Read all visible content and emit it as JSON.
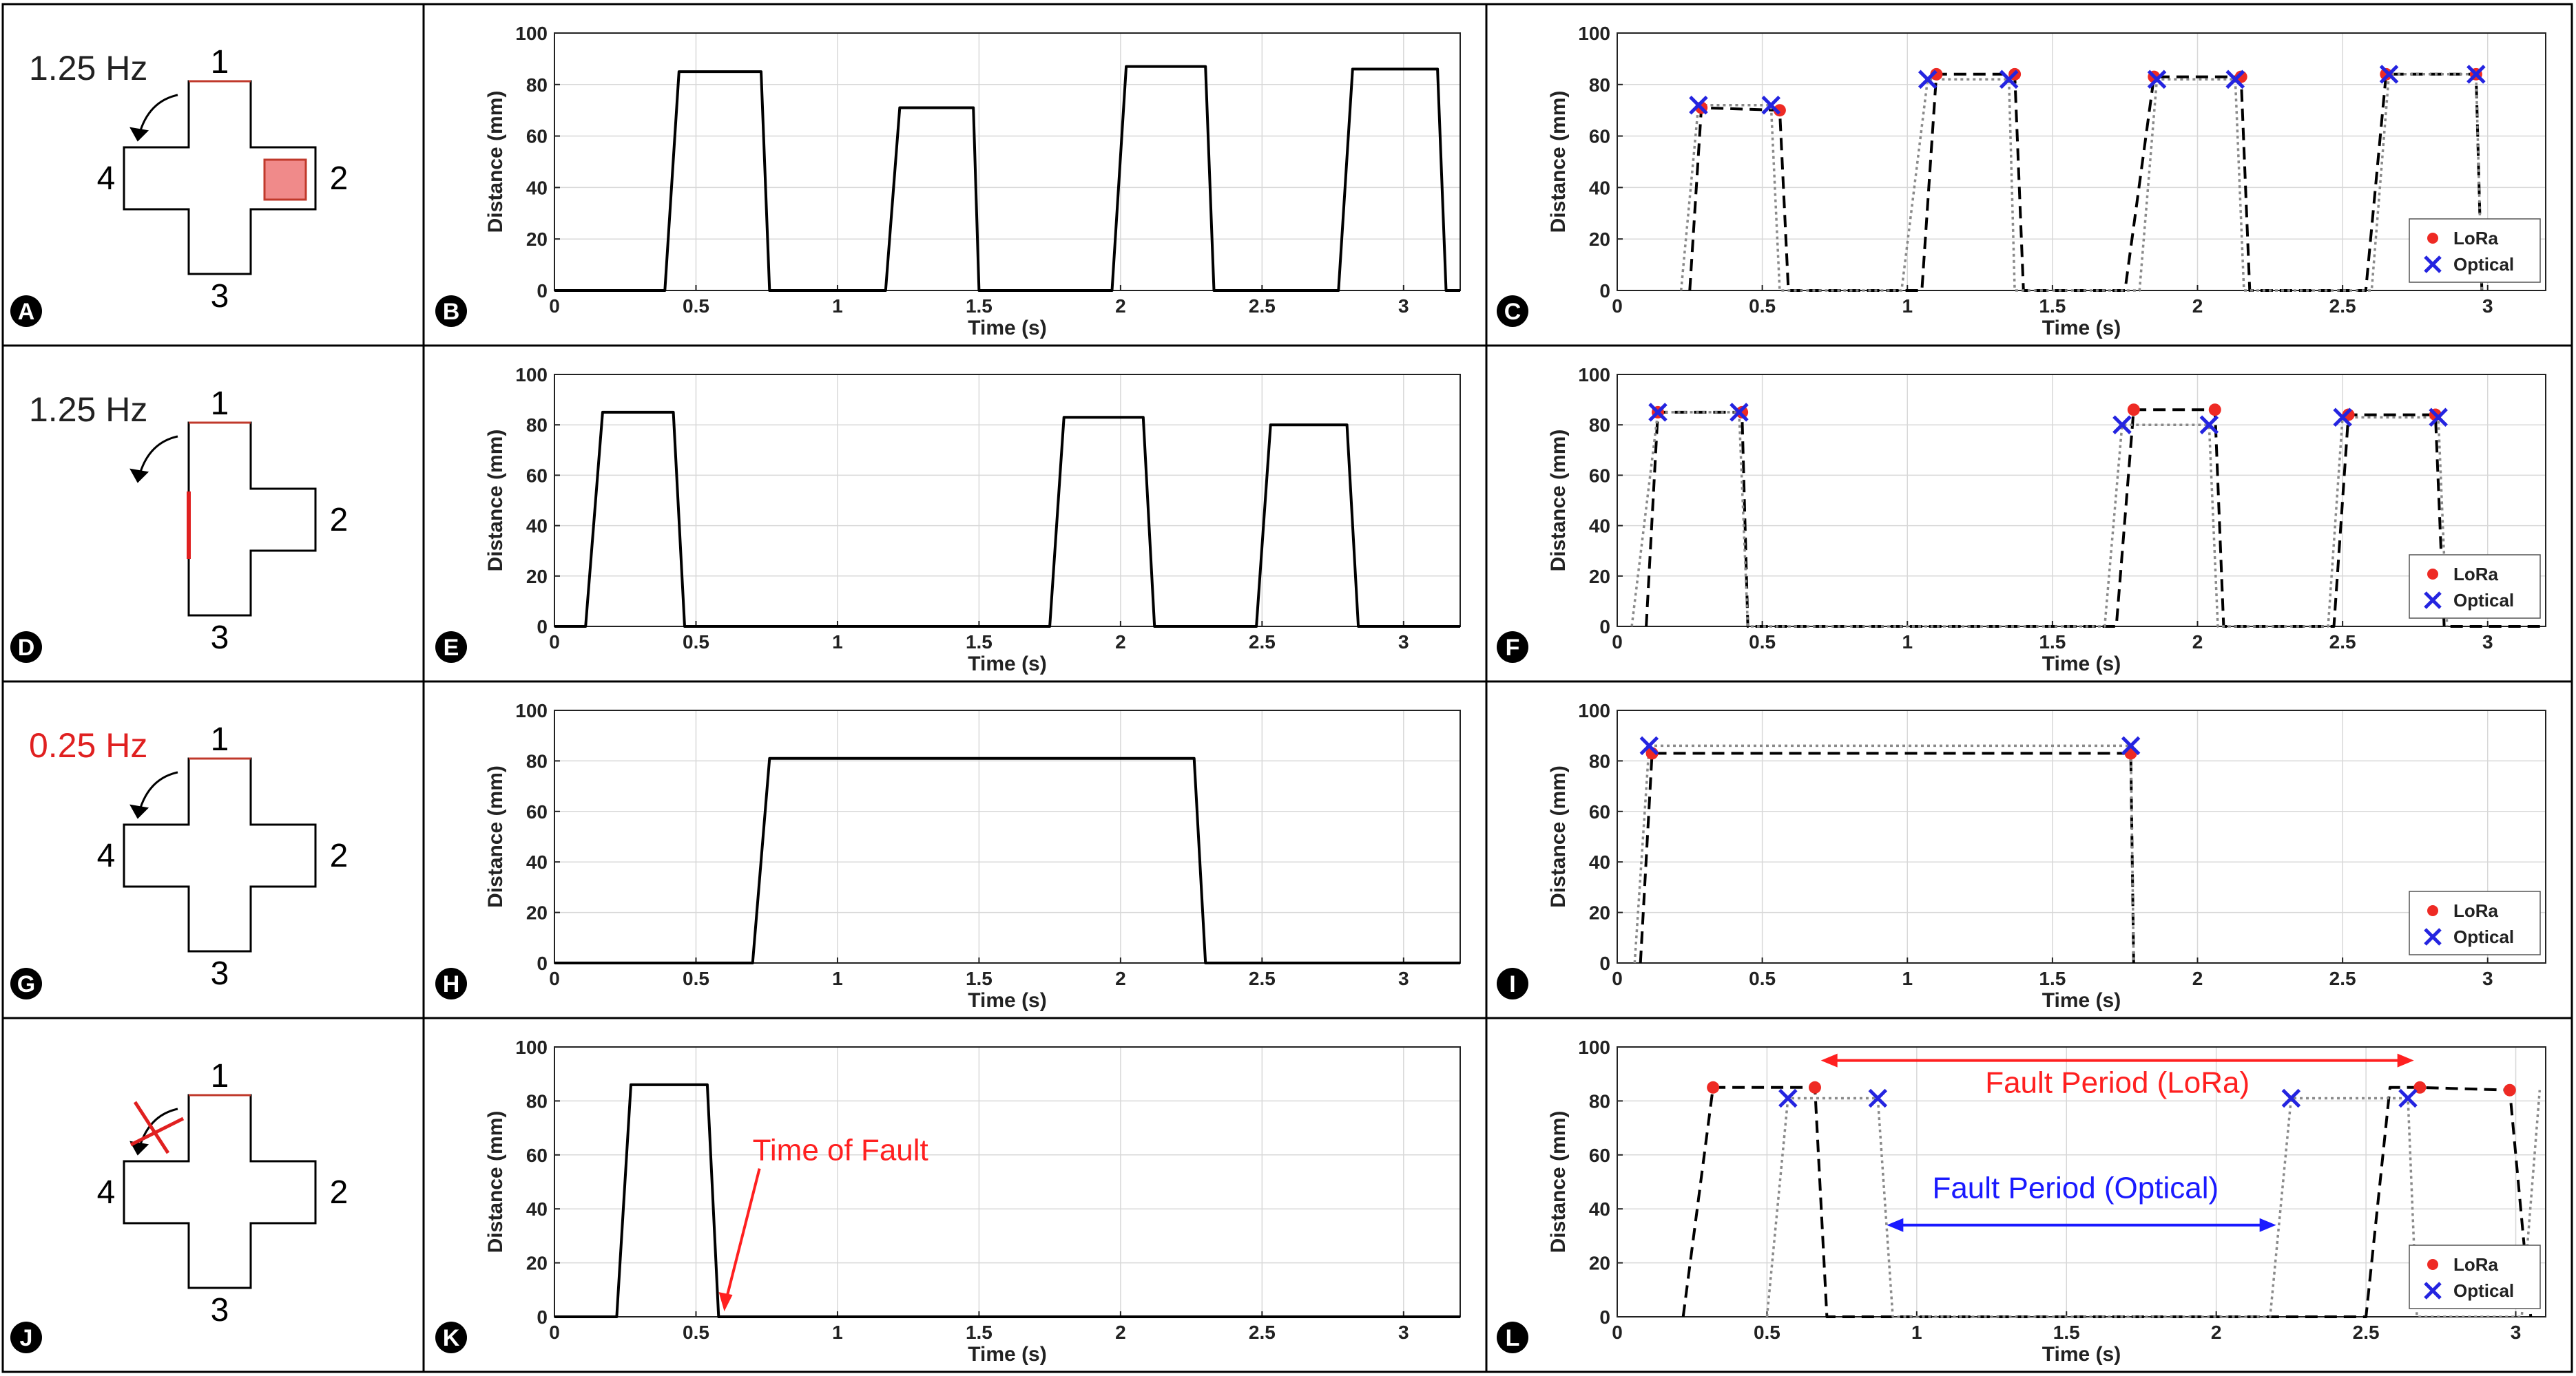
{
  "figure": {
    "panel_letters": [
      "A",
      "B",
      "C",
      "D",
      "E",
      "F",
      "G",
      "H",
      "I",
      "J",
      "K",
      "L"
    ],
    "arms": {
      "top": "1",
      "right": "2",
      "bottom": "3",
      "left": "4"
    }
  },
  "rows": [
    {
      "schematic": {
        "letter": "A",
        "frequency": "1.25 Hz",
        "frequency_color": "#222222",
        "shape": "cross",
        "fault": "patch-arm-2",
        "fault_color": "#f08a8a",
        "edge_color": "#c0392b"
      },
      "raw_letter": "B",
      "cmp_letter": "C"
    },
    {
      "schematic": {
        "letter": "D",
        "frequency": "1.25 Hz",
        "frequency_color": "#222222",
        "shape": "missing-left-arm",
        "fault": "edge-left",
        "fault_color": "#e02020",
        "edge_color": "#c0392b"
      },
      "raw_letter": "E",
      "cmp_letter": "F"
    },
    {
      "schematic": {
        "letter": "G",
        "frequency": "0.25 Hz",
        "frequency_color": "#e02020",
        "shape": "cross",
        "fault": "none",
        "fault_color": "",
        "edge_color": "#c0392b"
      },
      "raw_letter": "H",
      "cmp_letter": "I"
    },
    {
      "schematic": {
        "letter": "J",
        "frequency": "",
        "frequency_color": "#222222",
        "shape": "cross",
        "fault": "crossed-arrow",
        "fault_color": "#e02020",
        "edge_color": "#c0392b"
      },
      "raw_letter": "K",
      "cmp_letter": "L"
    }
  ],
  "chart_data": [
    {
      "panel": "B",
      "type": "line",
      "xlabel": "Time (s)",
      "ylabel": "Distance (mm)",
      "xlim": [
        0,
        3.2
      ],
      "ylim": [
        0,
        100
      ],
      "xticks": [
        "0",
        "0.5",
        "1",
        "1.5",
        "2",
        "2.5",
        "3"
      ],
      "xtick_values": [
        0,
        0.5,
        1,
        1.5,
        2,
        2.5,
        3
      ],
      "yticks": [
        "0",
        "20",
        "40",
        "60",
        "80",
        "100"
      ],
      "ytick_values": [
        0,
        20,
        40,
        60,
        80,
        100
      ],
      "series": [
        {
          "name": "Distance",
          "style": "solid",
          "color": "#000000",
          "x": [
            0,
            0.39,
            0.44,
            0.73,
            0.76,
            1.17,
            1.22,
            1.48,
            1.5,
            1.97,
            2.02,
            2.3,
            2.33,
            2.77,
            2.82,
            3.12,
            3.15,
            3.2
          ],
          "y": [
            0,
            0,
            85,
            85,
            0,
            0,
            71,
            71,
            0,
            0,
            87,
            87,
            0,
            0,
            86,
            86,
            0,
            0
          ]
        }
      ],
      "annotations": []
    },
    {
      "panel": "C",
      "type": "line",
      "xlabel": "Time (s)",
      "ylabel": "Distance (mm)",
      "xlim": [
        0,
        3.2
      ],
      "ylim": [
        0,
        100
      ],
      "xticks": [
        "0",
        "0.5",
        "1",
        "1.5",
        "2",
        "2.5",
        "3"
      ],
      "xtick_values": [
        0,
        0.5,
        1,
        1.5,
        2,
        2.5,
        3
      ],
      "yticks": [
        "0",
        "20",
        "40",
        "60",
        "80",
        "100"
      ],
      "ytick_values": [
        0,
        20,
        40,
        60,
        80,
        100
      ],
      "legend": {
        "entries": [
          "LoRa",
          "Optical"
        ],
        "position": "lower-right"
      },
      "series": [
        {
          "name": "LoRa",
          "style": "dashed",
          "color": "#000000",
          "x": [
            0.25,
            0.29,
            0.56,
            0.59,
            1.05,
            1.1,
            1.37,
            1.4,
            1.75,
            1.85,
            2.15,
            2.18,
            2.58,
            2.65,
            2.96,
            2.98
          ],
          "y": [
            0,
            71,
            70,
            0,
            0,
            84,
            84,
            0,
            0,
            83,
            83,
            0,
            0,
            84,
            84,
            0
          ]
        },
        {
          "name": "Optical",
          "style": "dotted",
          "color": "#8a8a8a",
          "x": [
            0.22,
            0.28,
            0.53,
            0.56,
            0.98,
            1.07,
            1.35,
            1.37,
            1.8,
            1.86,
            2.13,
            2.16,
            2.6,
            2.66,
            2.96,
            2.98
          ],
          "y": [
            0,
            72,
            72,
            0,
            0,
            82,
            82,
            0,
            0,
            82,
            82,
            0,
            0,
            84,
            84,
            0
          ]
        }
      ],
      "lora_points": {
        "x": [
          0.29,
          0.56,
          1.1,
          1.37,
          1.85,
          2.15,
          2.65,
          2.96
        ],
        "y": [
          71,
          70,
          84,
          84,
          83,
          83,
          84,
          84
        ]
      },
      "optical_points": {
        "x": [
          0.28,
          0.53,
          1.07,
          1.35,
          1.86,
          2.13,
          2.66,
          2.96
        ],
        "y": [
          72,
          72,
          82,
          82,
          82,
          82,
          84,
          84
        ]
      },
      "annotations": []
    },
    {
      "panel": "E",
      "type": "line",
      "xlabel": "Time (s)",
      "ylabel": "Distance (mm)",
      "xlim": [
        0,
        3.2
      ],
      "ylim": [
        0,
        100
      ],
      "xticks": [
        "0",
        "0.5",
        "1",
        "1.5",
        "2",
        "2.5",
        "3"
      ],
      "xtick_values": [
        0,
        0.5,
        1,
        1.5,
        2,
        2.5,
        3
      ],
      "yticks": [
        "0",
        "20",
        "40",
        "60",
        "80",
        "100"
      ],
      "ytick_values": [
        0,
        20,
        40,
        60,
        80,
        100
      ],
      "series": [
        {
          "name": "Distance",
          "style": "solid",
          "color": "#000000",
          "x": [
            0,
            0.11,
            0.17,
            0.42,
            0.46,
            1.75,
            1.8,
            2.08,
            2.12,
            2.48,
            2.53,
            2.8,
            2.84,
            3.2
          ],
          "y": [
            0,
            0,
            85,
            85,
            0,
            0,
            83,
            83,
            0,
            0,
            80,
            80,
            0,
            0
          ]
        }
      ],
      "annotations": []
    },
    {
      "panel": "F",
      "type": "line",
      "xlabel": "Time (s)",
      "ylabel": "Distance (mm)",
      "xlim": [
        0,
        3.2
      ],
      "ylim": [
        0,
        100
      ],
      "xticks": [
        "0",
        "0.5",
        "1",
        "1.5",
        "2",
        "2.5",
        "3"
      ],
      "xtick_values": [
        0,
        0.5,
        1,
        1.5,
        2,
        2.5,
        3
      ],
      "yticks": [
        "0",
        "20",
        "40",
        "60",
        "80",
        "100"
      ],
      "ytick_values": [
        0,
        20,
        40,
        60,
        80,
        100
      ],
      "legend": {
        "entries": [
          "LoRa",
          "Optical"
        ],
        "position": "lower-right"
      },
      "series": [
        {
          "name": "LoRa",
          "style": "dashed",
          "color": "#000000",
          "x": [
            0.1,
            0.14,
            0.43,
            0.45,
            1.72,
            1.78,
            2.06,
            2.09,
            2.47,
            2.52,
            2.82,
            2.85,
            3.2
          ],
          "y": [
            0,
            85,
            85,
            0,
            0,
            86,
            86,
            0,
            0,
            84,
            84,
            0,
            0
          ]
        },
        {
          "name": "Optical",
          "style": "dotted",
          "color": "#8a8a8a",
          "x": [
            0.05,
            0.14,
            0.42,
            0.45,
            1.68,
            1.74,
            2.04,
            2.07,
            2.45,
            2.5,
            2.83,
            2.86
          ],
          "y": [
            0,
            85,
            85,
            0,
            0,
            80,
            80,
            0,
            0,
            83,
            83,
            0
          ]
        }
      ],
      "lora_points": {
        "x": [
          0.14,
          0.43,
          1.78,
          2.06,
          2.52,
          2.82
        ],
        "y": [
          85,
          85,
          86,
          86,
          84,
          84
        ]
      },
      "optical_points": {
        "x": [
          0.14,
          0.42,
          1.74,
          2.04,
          2.5,
          2.83
        ],
        "y": [
          85,
          85,
          80,
          80,
          83,
          83
        ]
      },
      "annotations": []
    },
    {
      "panel": "H",
      "type": "line",
      "xlabel": "Time (s)",
      "ylabel": "Distance (mm)",
      "xlim": [
        0,
        3.2
      ],
      "ylim": [
        0,
        100
      ],
      "xticks": [
        "0",
        "0.5",
        "1",
        "1.5",
        "2",
        "2.5",
        "3"
      ],
      "xtick_values": [
        0,
        0.5,
        1,
        1.5,
        2,
        2.5,
        3
      ],
      "yticks": [
        "0",
        "20",
        "40",
        "60",
        "80",
        "100"
      ],
      "ytick_values": [
        0,
        20,
        40,
        60,
        80,
        100
      ],
      "series": [
        {
          "name": "Distance",
          "style": "solid",
          "color": "#000000",
          "x": [
            0,
            0.7,
            0.76,
            2.26,
            2.3,
            3.2
          ],
          "y": [
            0,
            0,
            81,
            81,
            0,
            0
          ]
        }
      ],
      "annotations": []
    },
    {
      "panel": "I",
      "type": "line",
      "xlabel": "Time (s)",
      "ylabel": "Distance (mm)",
      "xlim": [
        0,
        3.2
      ],
      "ylim": [
        0,
        100
      ],
      "xticks": [
        "0",
        "0.5",
        "1",
        "1.5",
        "2",
        "2.5",
        "3"
      ],
      "xtick_values": [
        0,
        0.5,
        1,
        1.5,
        2,
        2.5,
        3
      ],
      "yticks": [
        "0",
        "20",
        "40",
        "60",
        "80",
        "100"
      ],
      "ytick_values": [
        0,
        20,
        40,
        60,
        80,
        100
      ],
      "legend": {
        "entries": [
          "LoRa",
          "Optical"
        ],
        "position": "lower-right"
      },
      "series": [
        {
          "name": "LoRa",
          "style": "dashed",
          "color": "#000000",
          "x": [
            0.08,
            0.12,
            1.77,
            1.78
          ],
          "y": [
            0,
            83,
            83,
            0
          ]
        },
        {
          "name": "Optical",
          "style": "dotted",
          "color": "#8a8a8a",
          "x": [
            0.06,
            0.11,
            1.77,
            1.78
          ],
          "y": [
            0,
            86,
            86,
            0
          ]
        }
      ],
      "lora_points": {
        "x": [
          0.12,
          1.77
        ],
        "y": [
          83,
          83
        ]
      },
      "optical_points": {
        "x": [
          0.11,
          1.77
        ],
        "y": [
          86,
          86
        ]
      },
      "annotations": []
    },
    {
      "panel": "K",
      "type": "line",
      "xlabel": "Time (s)",
      "ylabel": "Distance (mm)",
      "xlim": [
        0,
        3.2
      ],
      "ylim": [
        0,
        100
      ],
      "xticks": [
        "0",
        "0.5",
        "1",
        "1.5",
        "2",
        "2.5",
        "3"
      ],
      "xtick_values": [
        0,
        0.5,
        1,
        1.5,
        2,
        2.5,
        3
      ],
      "yticks": [
        "0",
        "20",
        "40",
        "60",
        "80",
        "100"
      ],
      "ytick_values": [
        0,
        20,
        40,
        60,
        80,
        100
      ],
      "series": [
        {
          "name": "Distance",
          "style": "solid",
          "color": "#000000",
          "x": [
            0,
            0.22,
            0.27,
            0.54,
            0.58,
            3.2
          ],
          "y": [
            0,
            0,
            86,
            86,
            0,
            0
          ]
        }
      ],
      "annotations": [
        {
          "kind": "text-arrow",
          "text": "Time of Fault",
          "color": "#ff2020",
          "text_x": 0.7,
          "text_y": 58,
          "tip_x": 0.6,
          "tip_y": 2
        }
      ]
    },
    {
      "panel": "L",
      "type": "line",
      "xlabel": "Time (s)",
      "ylabel": "Distance (mm)",
      "xlim": [
        0,
        3.1
      ],
      "ylim": [
        0,
        100
      ],
      "xticks": [
        "0",
        "0.5",
        "1",
        "1.5",
        "2",
        "2.5",
        "3"
      ],
      "xtick_values": [
        0,
        0.5,
        1,
        1.5,
        2,
        2.5,
        3
      ],
      "yticks": [
        "0",
        "20",
        "40",
        "60",
        "80",
        "100"
      ],
      "ytick_values": [
        0,
        20,
        40,
        60,
        80,
        100
      ],
      "legend": {
        "entries": [
          "LoRa",
          "Optical"
        ],
        "position": "lower-right"
      },
      "series": [
        {
          "name": "LoRa",
          "style": "dashed",
          "color": "#000000",
          "x": [
            0.22,
            0.32,
            0.6,
            0.66,
            0.7,
            2.5,
            2.58,
            2.68,
            2.98,
            3.05
          ],
          "y": [
            0,
            85,
            85,
            85,
            0,
            0,
            85,
            85,
            84,
            0
          ]
        },
        {
          "name": "Optical",
          "style": "dotted",
          "color": "#8a8a8a",
          "x": [
            0.5,
            0.57,
            0.87,
            0.92,
            2.18,
            2.25,
            2.64,
            2.67,
            3.02,
            3.08
          ],
          "y": [
            0,
            81,
            81,
            0,
            0,
            81,
            81,
            0,
            0,
            84
          ]
        }
      ],
      "lora_points": {
        "x": [
          0.32,
          0.66,
          2.68,
          2.98
        ],
        "y": [
          85,
          85,
          85,
          84
        ]
      },
      "optical_points": {
        "x": [
          0.57,
          0.87,
          2.25,
          2.64
        ],
        "y": [
          81,
          81,
          81,
          81
        ]
      },
      "annotations": [
        {
          "kind": "double-arrow",
          "text": "Fault Period (LoRa)",
          "color": "#ff2020",
          "x1": 0.68,
          "x2": 2.66,
          "y": 95,
          "text_x": 1.67,
          "text_y": 83
        },
        {
          "kind": "double-arrow",
          "text": "Fault Period (Optical)",
          "color": "#1a1aff",
          "x1": 0.9,
          "x2": 2.2,
          "y": 34,
          "text_x": 1.53,
          "text_y": 44
        }
      ]
    }
  ]
}
